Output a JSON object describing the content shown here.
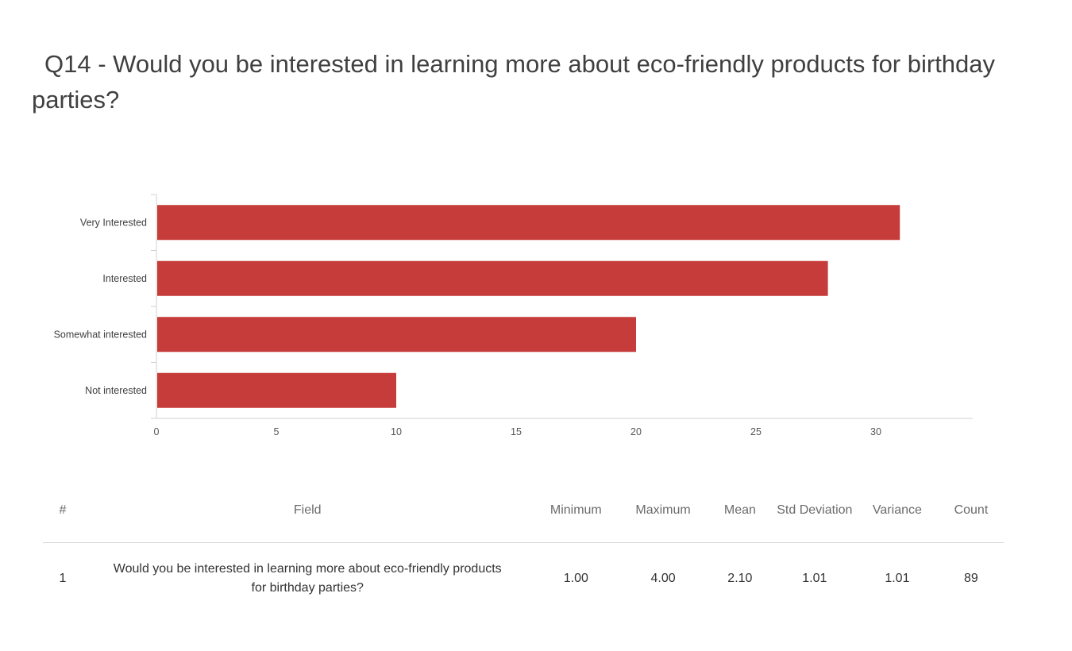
{
  "question": {
    "title_line1": "Q14 - Would you be interested in learning more about eco-friendly products for birthday",
    "title_line2": "parties?"
  },
  "chart_data": {
    "type": "bar",
    "orientation": "horizontal",
    "categories": [
      "Very Interested",
      "Interested",
      "Somewhat interested",
      "Not interested"
    ],
    "values": [
      31,
      28,
      20,
      10
    ],
    "x_ticks": [
      0,
      5,
      10,
      15,
      20,
      25,
      30
    ],
    "xlim": [
      0,
      34
    ],
    "bar_color": "#c63c3a",
    "grid": false,
    "xlabel": "",
    "ylabel": ""
  },
  "table": {
    "headers": {
      "num": "#",
      "field": "Field",
      "min": "Minimum",
      "max": "Maximum",
      "mean": "Mean",
      "std": "Std Deviation",
      "variance": "Variance",
      "count": "Count"
    },
    "rows": [
      {
        "num": "1",
        "field": "Would you be interested in learning more about eco-friendly products for birthday parties?",
        "min": "1.00",
        "max": "4.00",
        "mean": "2.10",
        "std": "1.01",
        "variance": "1.01",
        "count": "89"
      }
    ]
  }
}
